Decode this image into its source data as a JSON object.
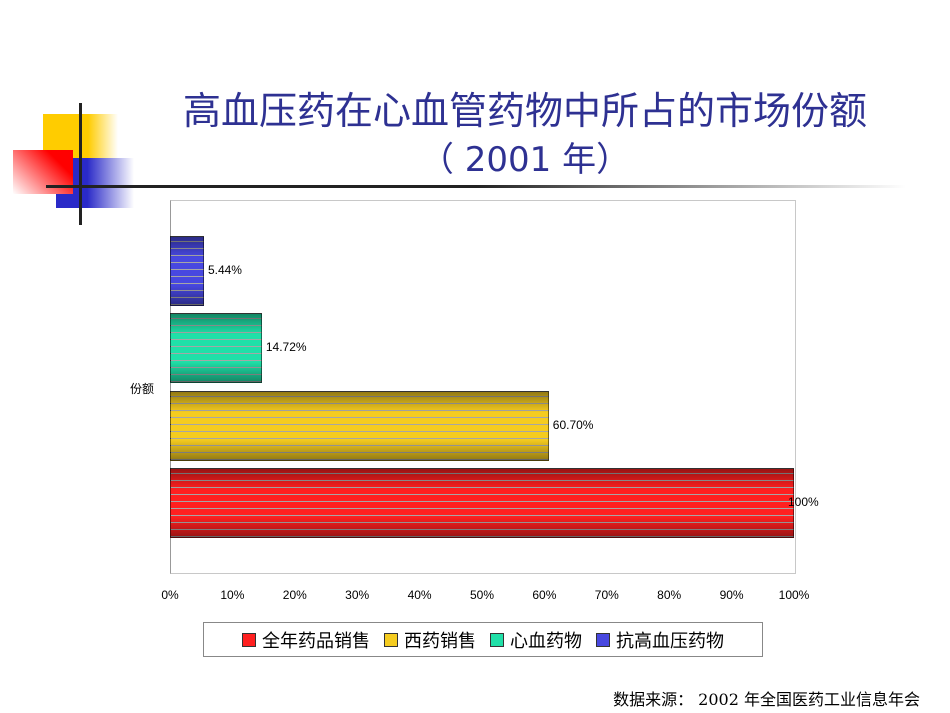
{
  "title_line1": "高血压药在心血管药物中所占的市场份额",
  "title_line2": "（ 2001 年）",
  "source": "数据来源： 2002 年全国医药工业信息年会",
  "chart_data": {
    "type": "bar",
    "orientation": "horizontal",
    "categories": [
      "份额"
    ],
    "ylabel": "份额",
    "xlim": [
      0,
      100
    ],
    "xticks": [
      "0%",
      "10%",
      "20%",
      "30%",
      "40%",
      "50%",
      "60%",
      "70%",
      "80%",
      "90%",
      "100%"
    ],
    "series": [
      {
        "name": "全年药品销售",
        "value": 100,
        "label": "100%",
        "color": "#ff2020"
      },
      {
        "name": "西药销售",
        "value": 60.7,
        "label": "60.70%",
        "color": "#f5cc20"
      },
      {
        "name": "心血药物",
        "value": 14.72,
        "label": "14.72%",
        "color": "#20e0a8"
      },
      {
        "name": "抗高血压药物",
        "value": 5.44,
        "label": "5.44%",
        "color": "#4848e0"
      }
    ],
    "legend": "bottom",
    "grid": false
  }
}
